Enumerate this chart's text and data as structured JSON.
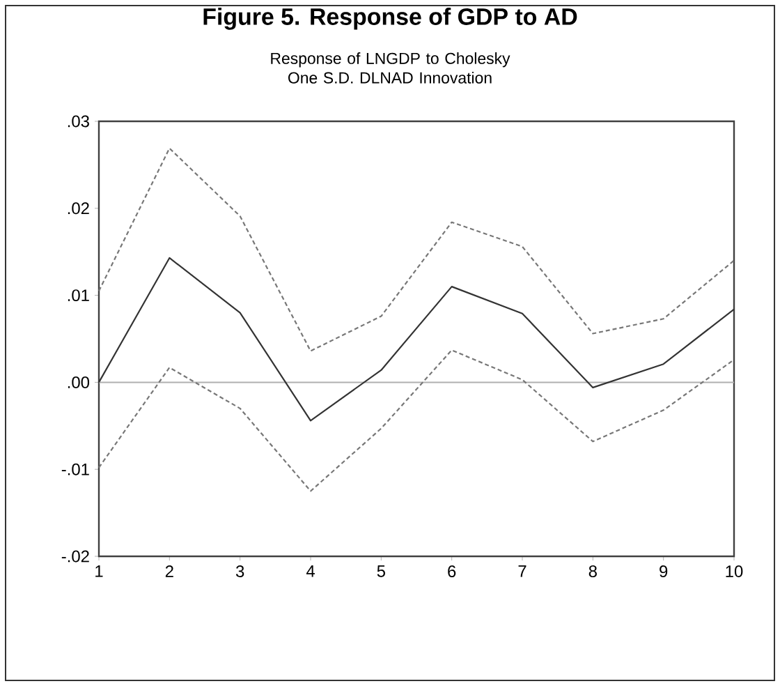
{
  "chart_data": {
    "type": "line",
    "title": "Figure 5. Response of GDP to AD",
    "subtitle": "Response of LNGDP to Cholesky One S.D. DLNAD Innovation",
    "x": [
      1,
      2,
      3,
      4,
      5,
      6,
      7,
      8,
      9,
      10
    ],
    "series": [
      {
        "color": "#333333",
        "line_style": "solid",
        "values": [
          0.0,
          0.0143,
          0.008,
          -0.0044,
          0.0014,
          0.011,
          0.0079,
          -0.0006,
          0.0021,
          0.0084
        ]
      },
      {
        "color": "#777777",
        "line_style": "dotted",
        "values": [
          0.0105,
          0.0269,
          0.0191,
          0.0036,
          0.0076,
          0.0184,
          0.0156,
          0.0056,
          0.0073,
          0.014
        ]
      },
      {
        "color": "#777777",
        "line_style": "dotted",
        "values": [
          -0.0098,
          0.0017,
          -0.003,
          -0.0125,
          -0.0053,
          0.0037,
          0.0003,
          -0.0068,
          -0.0032,
          0.0026
        ]
      }
    ],
    "xlim": [
      1,
      10
    ],
    "ylim": [
      -0.02,
      0.03
    ],
    "xticks": [
      1,
      2,
      3,
      4,
      5,
      6,
      7,
      8,
      9,
      10
    ],
    "yticks": [
      {
        "value": -0.02,
        "label": "-.02"
      },
      {
        "value": -0.01,
        "label": "-.01"
      },
      {
        "value": 0.0,
        "label": ".00"
      },
      {
        "value": 0.01,
        "label": ".01"
      },
      {
        "value": 0.02,
        "label": ".02"
      },
      {
        "value": 0.03,
        "label": ".03"
      }
    ],
    "ref_lines": [
      {
        "axis": "y",
        "value": 0.0,
        "color": "#b0b0b0"
      }
    ],
    "grid": false
  }
}
